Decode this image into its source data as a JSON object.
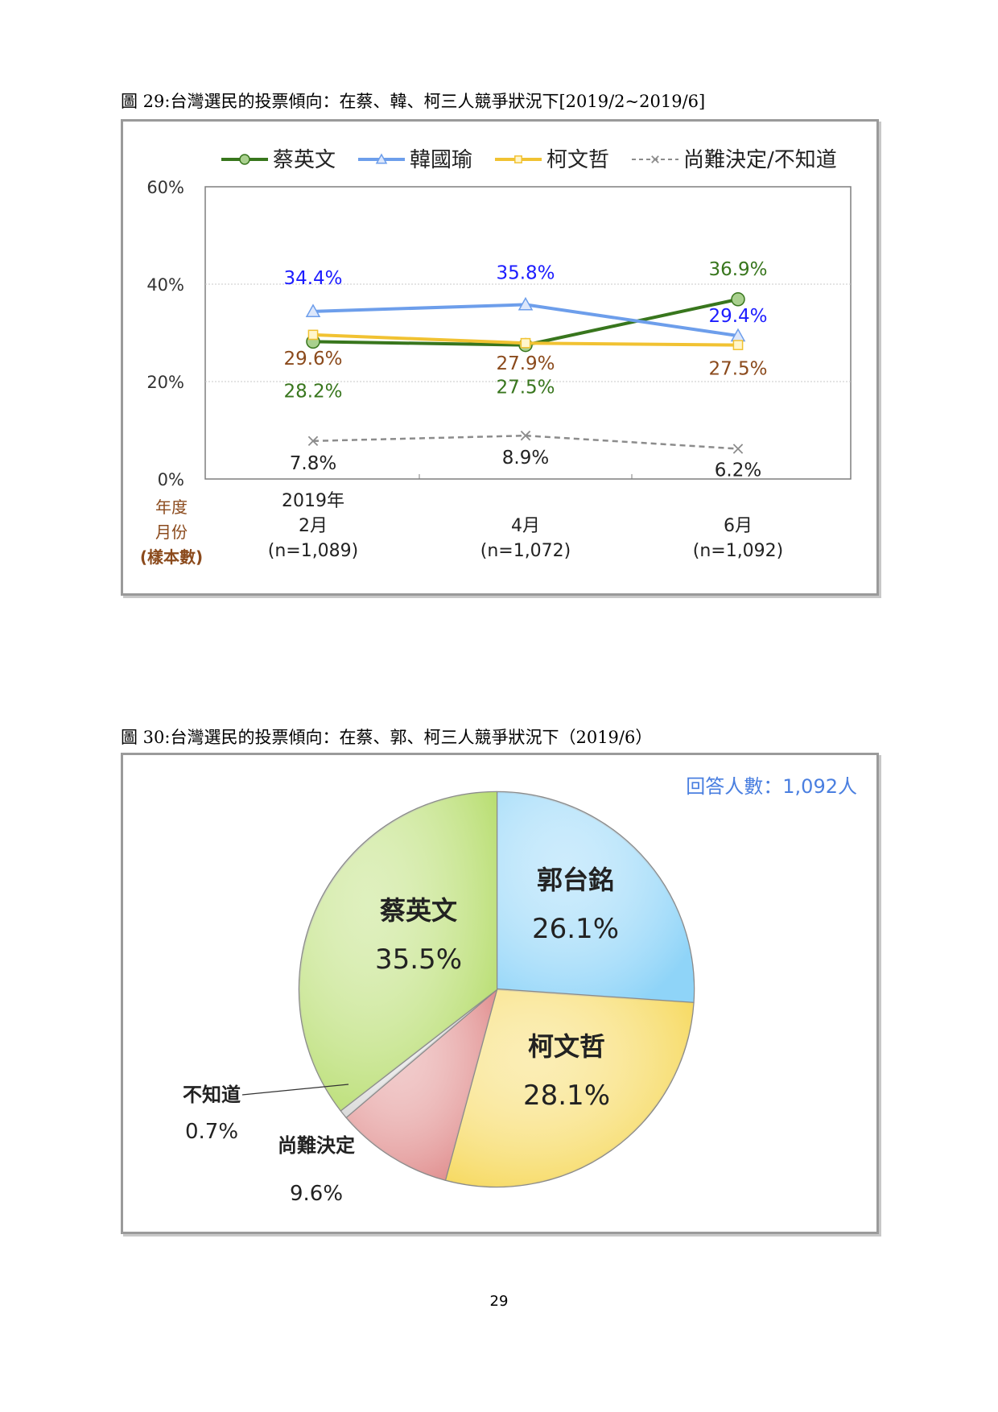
{
  "page_number": "29",
  "chart_data": [
    {
      "type": "line",
      "title": "圖 29:台灣選民的投票傾向：在蔡、韓、柯三人競爭狀況下[2019/2~2019/6]",
      "x_header": [
        "年度",
        "月份",
        "(樣本數)"
      ],
      "categories": [
        [
          "2019年",
          "2月",
          "(n=1,089)"
        ],
        [
          "4月",
          "(n=1,072)"
        ],
        [
          "6月",
          "(n=1,092)"
        ]
      ],
      "y_ticks": [
        "0%",
        "20%",
        "40%",
        "60%"
      ],
      "ylim": [
        0,
        60
      ],
      "grid": true,
      "legend": "top",
      "series": [
        {
          "name": "蔡英文",
          "values": [
            28.2,
            27.5,
            36.9
          ],
          "labels": [
            "28.2%",
            "27.5%",
            "36.9%"
          ],
          "color": "#38761d",
          "label_color": "#38761d",
          "marker": "circle",
          "marker_fill": "#a9d08e",
          "dash": false
        },
        {
          "name": "韓國瑜",
          "values": [
            34.4,
            35.8,
            29.4
          ],
          "labels": [
            "34.4%",
            "35.8%",
            "29.4%"
          ],
          "color": "#6d9eeb",
          "label_color": "#1c1cff",
          "marker": "triangle",
          "marker_fill": "#dde7fb",
          "dash": false
        },
        {
          "name": "柯文哲",
          "values": [
            29.6,
            27.9,
            27.5
          ],
          "labels": [
            "29.6%",
            "27.9%",
            "27.5%"
          ],
          "color": "#f1c232",
          "label_color": "#8b4a1c",
          "marker": "square",
          "marker_fill": "#fff6cc",
          "dash": false
        },
        {
          "name": "尚難決定/不知道",
          "values": [
            7.8,
            8.9,
            6.2
          ],
          "labels": [
            "7.8%",
            "8.9%",
            "6.2%"
          ],
          "color": "#8c8c8c",
          "label_color": "#222222",
          "marker": "x",
          "marker_fill": "#8c8c8c",
          "dash": true
        }
      ]
    },
    {
      "type": "pie",
      "title": "圖 30:台灣選民的投票傾向：在蔡、郭、柯三人競爭狀況下（2019/6）",
      "note": "回答人數：1,092人",
      "slices": [
        {
          "name": "郭台銘",
          "value": 26.1,
          "label": "26.1%",
          "color": "#8fd4f8"
        },
        {
          "name": "柯文哲",
          "value": 28.1,
          "label": "28.1%",
          "color": "#f6d85a"
        },
        {
          "name": "尚難決定",
          "value": 9.6,
          "label": "9.6%",
          "color": "#e08c8c"
        },
        {
          "name": "不知道",
          "value": 0.7,
          "label": "0.7%",
          "color": "#d9d9d9"
        },
        {
          "name": "蔡英文",
          "value": 35.5,
          "label": "35.5%",
          "color": "#b7dd6e"
        }
      ]
    }
  ]
}
